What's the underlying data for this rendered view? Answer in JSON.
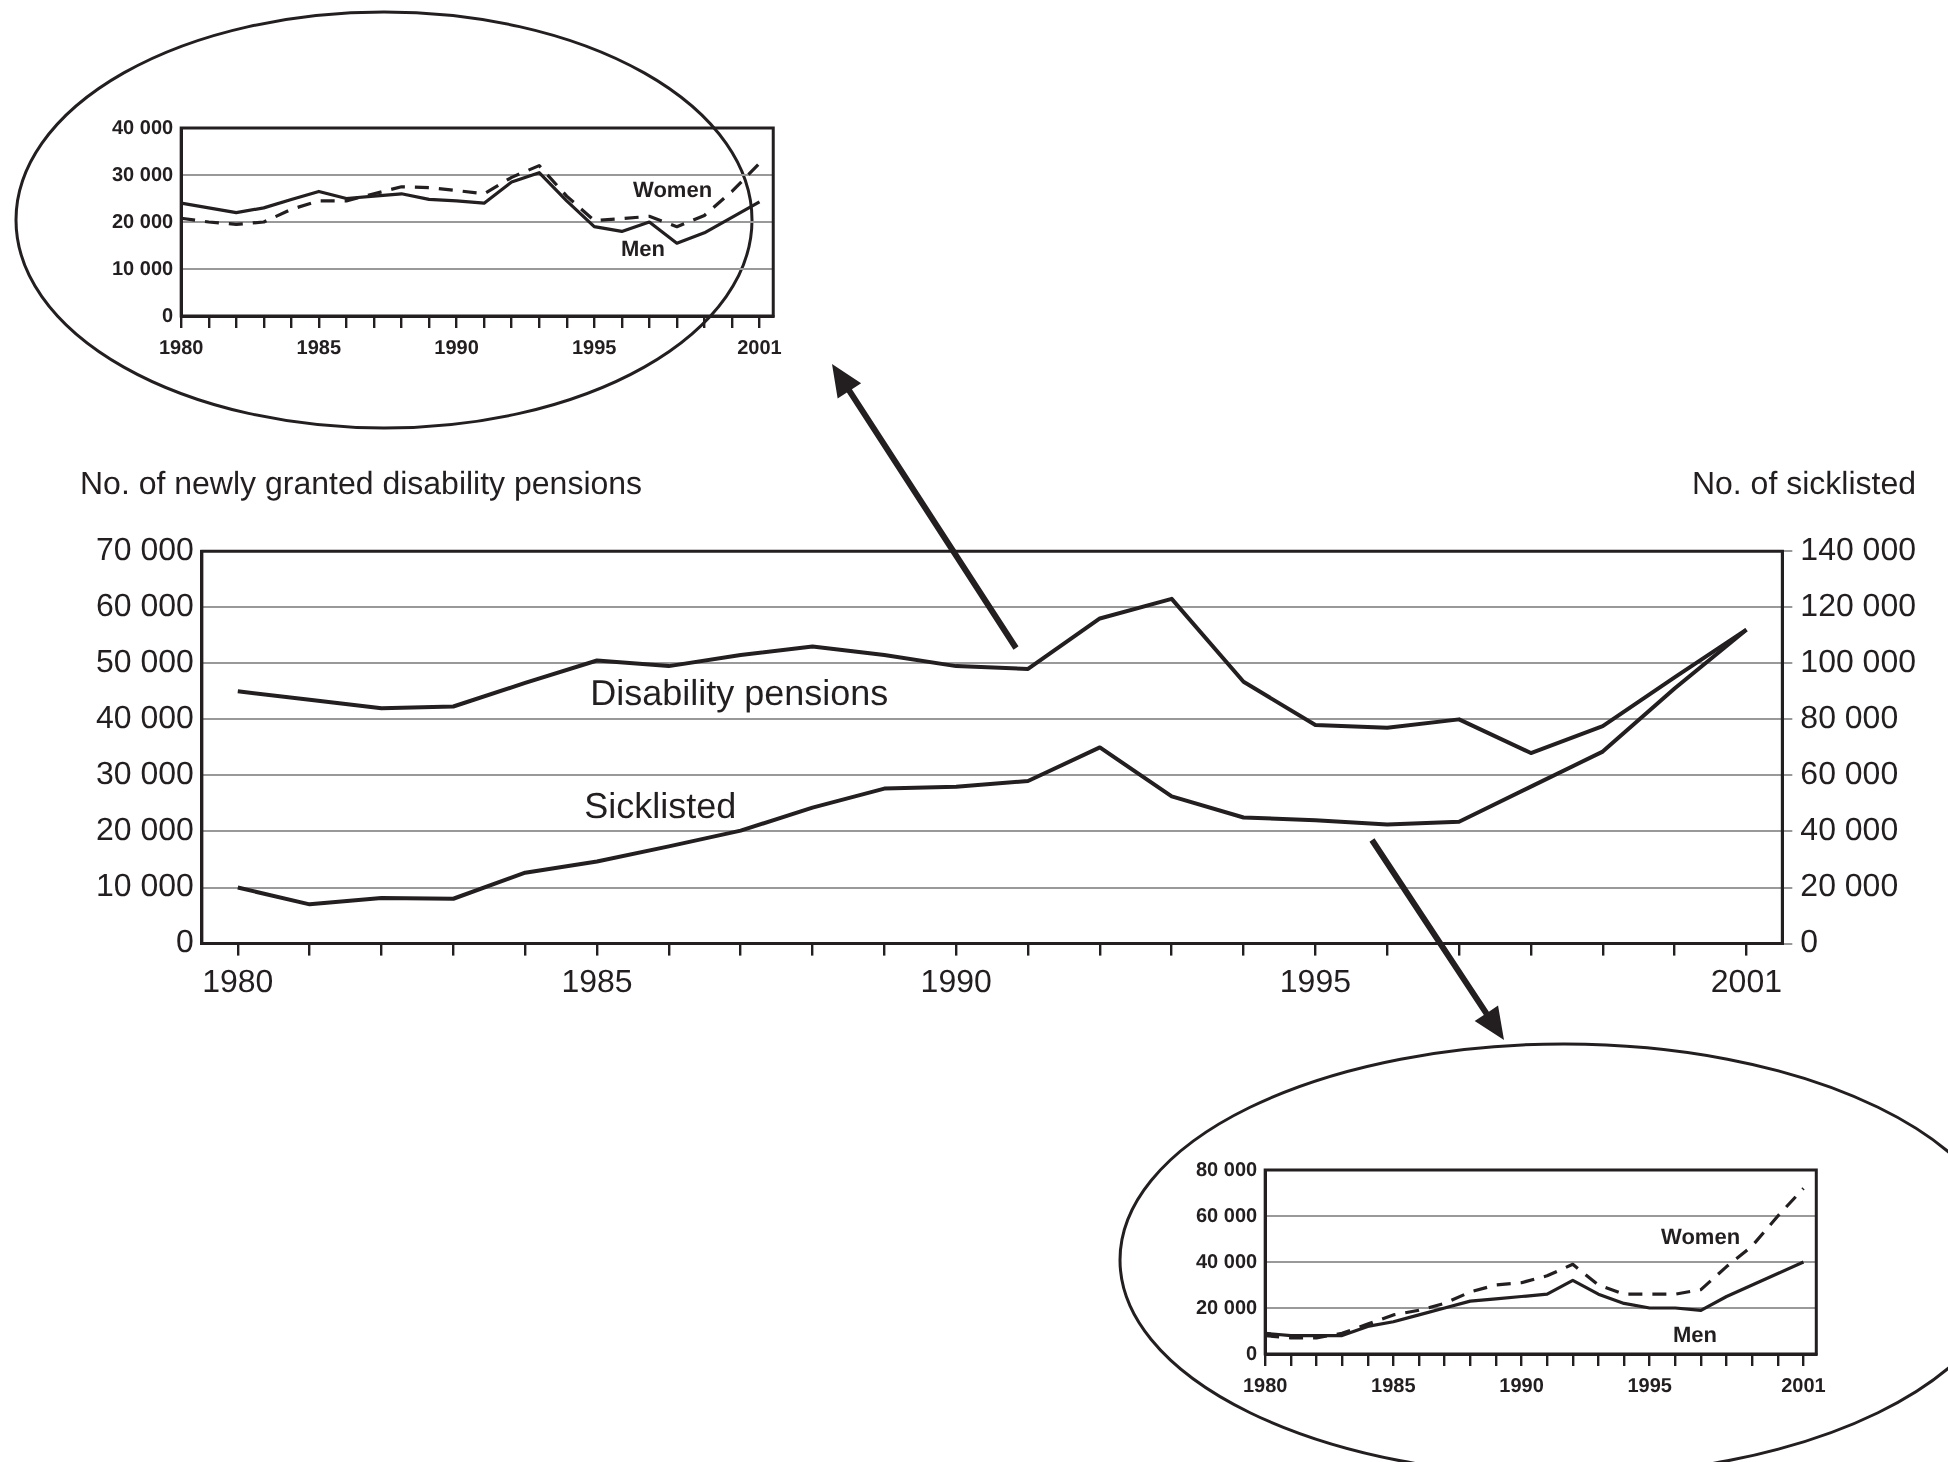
{
  "chart_data": [
    {
      "type": "line",
      "ylabel": "No. of newly granted disability pensions",
      "y2label": "No. of sicklisted",
      "x": [
        1980,
        1981,
        1982,
        1983,
        1984,
        1985,
        1986,
        1987,
        1988,
        1989,
        1990,
        1991,
        1992,
        1993,
        1994,
        1995,
        1996,
        1997,
        1998,
        1999,
        2000,
        2001
      ],
      "xlim": [
        1979.5,
        2001.5
      ],
      "xticks": [
        1980,
        {
          "value": 1981,
          "label": null
        },
        {
          "value": 1982,
          "label": null
        },
        {
          "value": 1983,
          "label": null
        },
        {
          "value": 1984,
          "label": null
        },
        1985,
        {
          "value": 1986,
          "label": null
        },
        {
          "value": 1987,
          "label": null
        },
        {
          "value": 1988,
          "label": null
        },
        {
          "value": 1989,
          "label": null
        },
        1990,
        {
          "value": 1991,
          "label": null
        },
        {
          "value": 1992,
          "label": null
        },
        {
          "value": 1993,
          "label": null
        },
        {
          "value": 1994,
          "label": null
        },
        1995,
        {
          "value": 1996,
          "label": null
        },
        {
          "value": 1997,
          "label": null
        },
        {
          "value": 1998,
          "label": null
        },
        {
          "value": 1999,
          "label": null
        },
        {
          "value": 2000,
          "label": null
        },
        2001
      ],
      "ylim": [
        0,
        70000
      ],
      "yticks": [
        {
          "value": 0,
          "label": "0"
        },
        {
          "value": 10000,
          "label": "10 000"
        },
        {
          "value": 20000,
          "label": "20 000"
        },
        {
          "value": 30000,
          "label": "30 000"
        },
        {
          "value": 40000,
          "label": "40 000"
        },
        {
          "value": 50000,
          "label": "50 000"
        },
        {
          "value": 60000,
          "label": "60 000"
        },
        {
          "value": 70000,
          "label": "70 000"
        }
      ],
      "y2lim": [
        0,
        140000
      ],
      "y2ticks": [
        {
          "value": 0,
          "label": "0"
        },
        {
          "value": 20000,
          "label": "20 000"
        },
        {
          "value": 40000,
          "label": "40 000"
        },
        {
          "value": 60000,
          "label": "60 000"
        },
        {
          "value": 80000,
          "label": "80 000"
        },
        {
          "value": 100000,
          "label": "100 000"
        },
        {
          "value": 120000,
          "label": "120 000"
        },
        {
          "value": 140000,
          "label": "140 000"
        }
      ],
      "grid": "y",
      "series": [
        {
          "name": "Disability pensions",
          "color": "#231f20",
          "line_style": "solid",
          "values": [
            45000,
            43500,
            42000,
            42300,
            46500,
            50500,
            49500,
            51500,
            53000,
            51500,
            49500,
            49000,
            58000,
            61500,
            46700,
            39000,
            38500,
            40000,
            34000,
            38800,
            47500,
            56000
          ]
        },
        {
          "name": "Sicklisted",
          "color": "#231f20",
          "line_style": "solid",
          "axis": "y2",
          "values": [
            20000,
            14000,
            16300,
            16000,
            25300,
            29300,
            34700,
            40300,
            48500,
            55300,
            56000,
            58000,
            70000,
            52500,
            45000,
            44000,
            42500,
            43500,
            56000,
            68500,
            91000,
            112000
          ]
        }
      ]
    },
    {
      "type": "line",
      "x": [
        1980,
        1981,
        1982,
        1983,
        1984,
        1985,
        1986,
        1987,
        1988,
        1989,
        1990,
        1991,
        1992,
        1993,
        1994,
        1995,
        1996,
        1997,
        1998,
        1999,
        2000,
        2001
      ],
      "xlim": [
        1980,
        2001.5
      ],
      "xticks": [
        1980,
        {
          "value": 1981,
          "label": null
        },
        {
          "value": 1982,
          "label": null
        },
        {
          "value": 1983,
          "label": null
        },
        {
          "value": 1984,
          "label": null
        },
        1985,
        {
          "value": 1986,
          "label": null
        },
        {
          "value": 1987,
          "label": null
        },
        {
          "value": 1988,
          "label": null
        },
        {
          "value": 1989,
          "label": null
        },
        1990,
        {
          "value": 1991,
          "label": null
        },
        {
          "value": 1992,
          "label": null
        },
        {
          "value": 1993,
          "label": null
        },
        {
          "value": 1994,
          "label": null
        },
        1995,
        {
          "value": 1996,
          "label": null
        },
        {
          "value": 1997,
          "label": null
        },
        {
          "value": 1998,
          "label": null
        },
        {
          "value": 1999,
          "label": null
        },
        {
          "value": 2000,
          "label": null
        },
        2001
      ],
      "ylim": [
        0,
        40000
      ],
      "yticks": [
        {
          "value": 0,
          "label": "0"
        },
        {
          "value": 10000,
          "label": "10 000"
        },
        {
          "value": 20000,
          "label": "20 000"
        },
        {
          "value": 30000,
          "label": "30 000"
        },
        {
          "value": 40000,
          "label": "40 000"
        }
      ],
      "grid": "y",
      "series": [
        {
          "name": "Men",
          "color": "#231f20",
          "line_style": "solid",
          "values": [
            24000,
            23000,
            22000,
            23000,
            24800,
            26500,
            25000,
            25500,
            26000,
            24800,
            24500,
            24000,
            28500,
            30500,
            24500,
            19000,
            18000,
            20000,
            15500,
            17700,
            21000,
            24300
          ]
        },
        {
          "name": "Women",
          "color": "#231f20",
          "line_style": "dashed",
          "values": [
            20800,
            20000,
            19500,
            20000,
            22700,
            24500,
            24500,
            26000,
            27500,
            27300,
            26700,
            26000,
            29500,
            32000,
            25500,
            20300,
            20700,
            21200,
            19000,
            21400,
            26500,
            32500
          ]
        }
      ]
    },
    {
      "type": "line",
      "x": [
        1980,
        1981,
        1982,
        1983,
        1984,
        1985,
        1986,
        1987,
        1988,
        1989,
        1990,
        1991,
        1992,
        1993,
        1994,
        1995,
        1996,
        1997,
        1998,
        1999,
        2000,
        2001
      ],
      "xlim": [
        1980,
        2001.5
      ],
      "xticks": [
        1980,
        {
          "value": 1981,
          "label": null
        },
        {
          "value": 1982,
          "label": null
        },
        {
          "value": 1983,
          "label": null
        },
        {
          "value": 1984,
          "label": null
        },
        1985,
        {
          "value": 1986,
          "label": null
        },
        {
          "value": 1987,
          "label": null
        },
        {
          "value": 1988,
          "label": null
        },
        {
          "value": 1989,
          "label": null
        },
        1990,
        {
          "value": 1991,
          "label": null
        },
        {
          "value": 1992,
          "label": null
        },
        {
          "value": 1993,
          "label": null
        },
        {
          "value": 1994,
          "label": null
        },
        1995,
        {
          "value": 1996,
          "label": null
        },
        {
          "value": 1997,
          "label": null
        },
        {
          "value": 1998,
          "label": null
        },
        {
          "value": 1999,
          "label": null
        },
        {
          "value": 2000,
          "label": null
        },
        2001
      ],
      "ylim": [
        0,
        80000
      ],
      "yticks": [
        {
          "value": 0,
          "label": "0"
        },
        {
          "value": 20000,
          "label": "20 000"
        },
        {
          "value": 40000,
          "label": "40 000"
        },
        {
          "value": 60000,
          "label": "60 000"
        },
        {
          "value": 80000,
          "label": "80 000"
        }
      ],
      "grid": "y",
      "series": [
        {
          "name": "Men",
          "color": "#231f20",
          "line_style": "solid",
          "values": [
            9000,
            8000,
            8000,
            8000,
            12000,
            14000,
            17000,
            20000,
            23000,
            24000,
            25000,
            26000,
            32000,
            26000,
            22000,
            20000,
            20000,
            19000,
            25000,
            30000,
            35000,
            40000
          ]
        },
        {
          "name": "Women",
          "color": "#231f20",
          "line_style": "dashed",
          "values": [
            8000,
            7000,
            7000,
            9000,
            13000,
            17000,
            19000,
            22000,
            27000,
            30000,
            31000,
            34000,
            39000,
            30000,
            26000,
            26000,
            26000,
            28000,
            38000,
            47000,
            60000,
            72000
          ]
        }
      ]
    }
  ]
}
